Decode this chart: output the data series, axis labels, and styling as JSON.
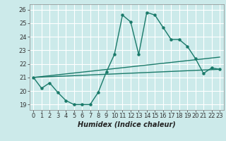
{
  "background_color": "#cceaea",
  "grid_color": "#ffffff",
  "line_color": "#1a7a6a",
  "xlabel": "Humidex (Indice chaleur)",
  "xlim": [
    -0.5,
    23.5
  ],
  "ylim": [
    18.6,
    26.4
  ],
  "yticks": [
    19,
    20,
    21,
    22,
    23,
    24,
    25,
    26
  ],
  "xticks": [
    0,
    1,
    2,
    3,
    4,
    5,
    6,
    7,
    8,
    9,
    10,
    11,
    12,
    13,
    14,
    15,
    16,
    17,
    18,
    19,
    20,
    21,
    22,
    23
  ],
  "series1_x": [
    0,
    1,
    2,
    3,
    4,
    5,
    6,
    7,
    8,
    9,
    10,
    11,
    12,
    13,
    14,
    15,
    16,
    17,
    18,
    19,
    20,
    21,
    22,
    23
  ],
  "series1_y": [
    21.0,
    20.2,
    20.6,
    19.9,
    19.3,
    19.0,
    19.0,
    19.0,
    19.9,
    21.4,
    22.7,
    25.6,
    25.1,
    22.7,
    25.8,
    25.6,
    24.7,
    23.8,
    23.8,
    23.3,
    22.4,
    21.3,
    21.7,
    21.6
  ],
  "series2_x": [
    0,
    23
  ],
  "series2_y": [
    21.0,
    21.6
  ],
  "series3_x": [
    0,
    23
  ],
  "series3_y": [
    21.0,
    22.5
  ],
  "marker_size": 2.2,
  "line_width": 1.0,
  "tick_fontsize": 6.0,
  "xlabel_fontsize": 7.0
}
